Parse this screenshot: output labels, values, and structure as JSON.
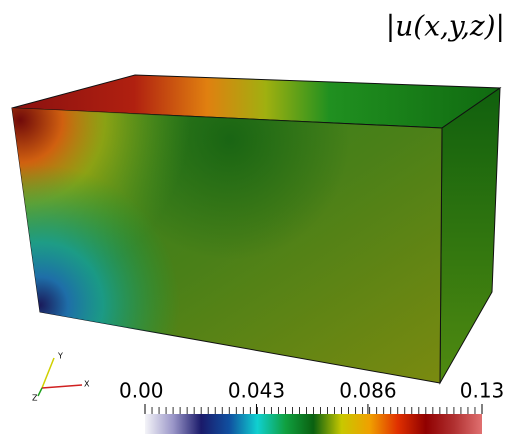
{
  "title": "|u(x,y,z)|",
  "colorbar": {
    "range": [
      0,
      0.13
    ],
    "ticks": [
      {
        "value": 0,
        "label": "0.00"
      },
      0.043,
      0.086,
      0.13
    ],
    "colors": [
      "#f4f4f8",
      "#9a96c8",
      "#1a1a6a",
      "#1050a0",
      "#10d0d0",
      "#10a040",
      "#0a6010",
      "#c8c800",
      "#f0a000",
      "#e03000",
      "#900000",
      "#b03030",
      "#e07070"
    ]
  },
  "axes_triad": {
    "x": "X",
    "y": "Y",
    "z": "Z"
  }
}
